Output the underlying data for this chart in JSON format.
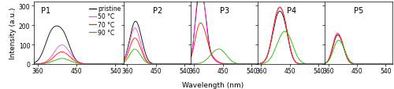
{
  "xlabel": "Wavelength (nm)",
  "ylabel": "Intensity (a.u.)",
  "legend_labels": [
    "pristine",
    "50 °C",
    "70 °C",
    "90 °C"
  ],
  "colors": [
    "#111111",
    "#ff44ee",
    "#ff2200",
    "#22bb00"
  ],
  "panel_labels": [
    "P1",
    "P2",
    "P3",
    "P4",
    "P5"
  ],
  "x_ticks": [
    360,
    450,
    540
  ],
  "ylim": [
    0,
    320
  ],
  "yticks": [
    0,
    100,
    200,
    300
  ],
  "background_color": "#ffffff",
  "tick_fontsize": 5.5,
  "label_fontsize": 6.5,
  "panel_label_fontsize": 7,
  "legend_fontsize": 5.5,
  "linewidth": 0.65
}
